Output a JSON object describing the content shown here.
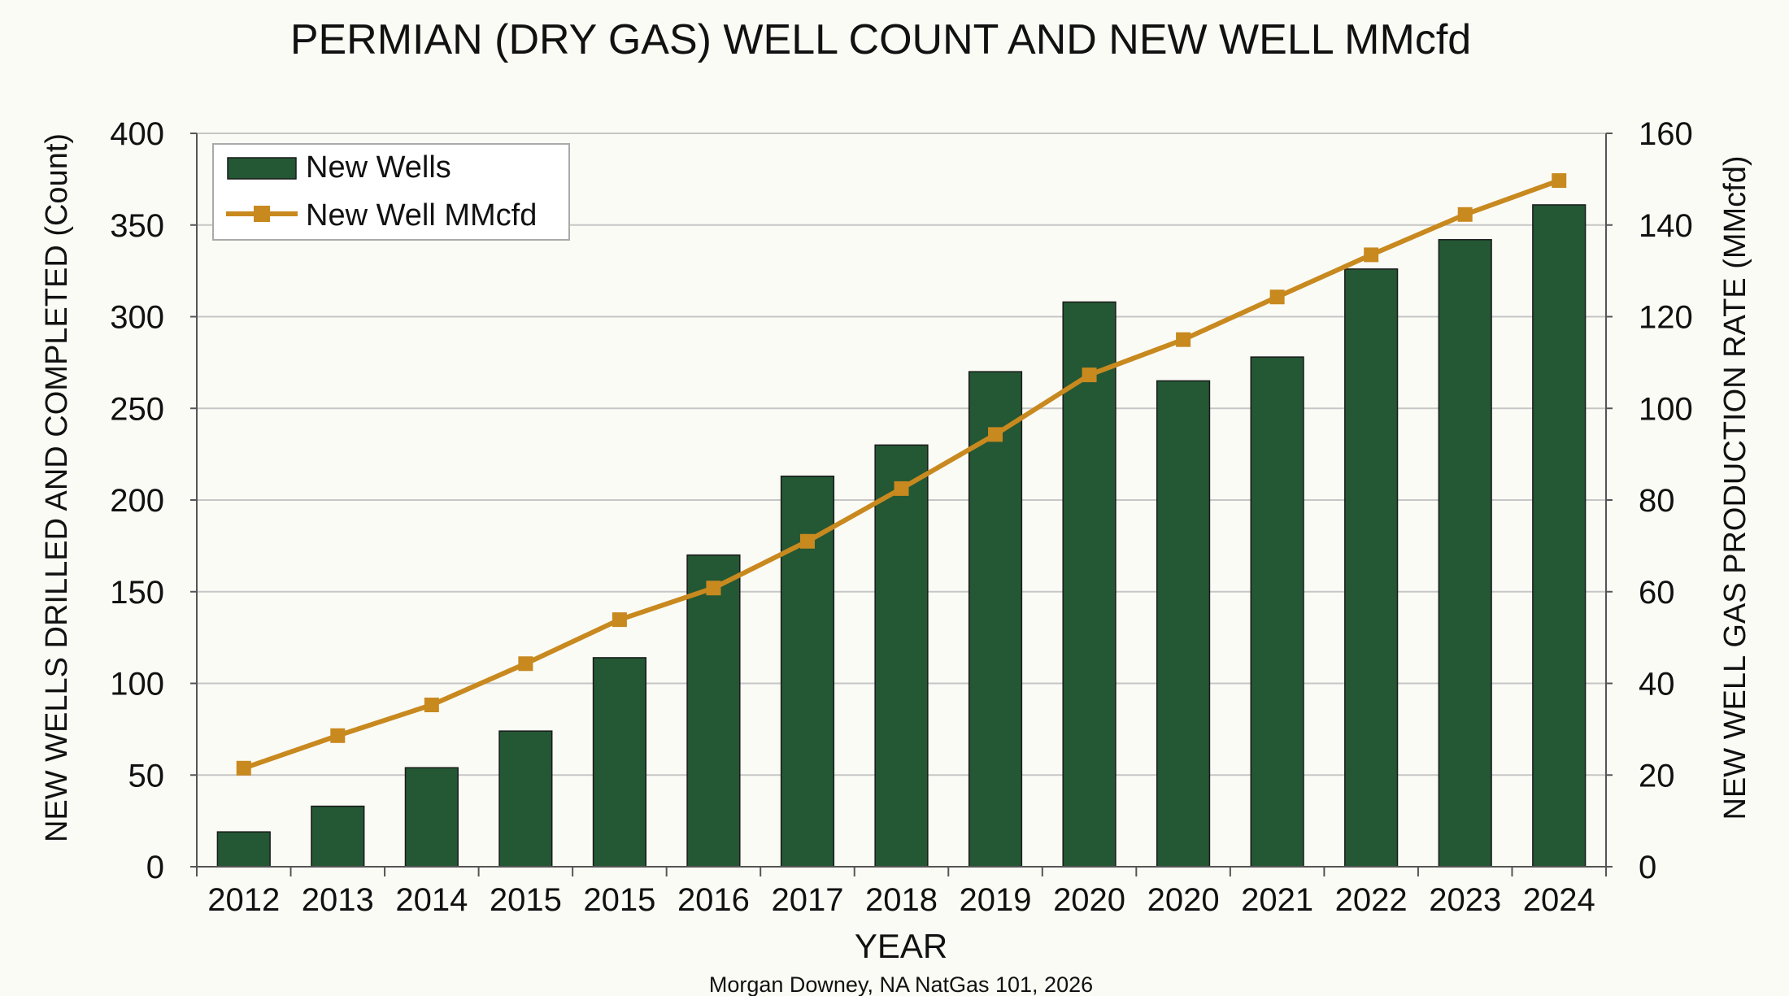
{
  "chart_data": {
    "type": "bar",
    "title": "PERMIAN (DRY GAS) WELL COUNT AND NEW WELL MMcfd",
    "xlabel": "YEAR",
    "ylabel": "NEW WELLS DRILLED AND COMPLETED (Count)",
    "y2label": "NEW WELL GAS PRODUCTION RATE (MMcfd)",
    "source": "Morgan Downey, NA NatGas 101, 2026",
    "categories": [
      "2012",
      "2013",
      "2014",
      "2015",
      "2015",
      "2016",
      "2017",
      "2018",
      "2019",
      "2020",
      "2020",
      "2021",
      "2022",
      "2023",
      "2024"
    ],
    "series": [
      {
        "name": "New Wells",
        "type": "bar",
        "axis": "left",
        "color": "#245734",
        "values": [
          19,
          33,
          54,
          74,
          114,
          170,
          213,
          230,
          270,
          308,
          265,
          278,
          326,
          342,
          361
        ]
      },
      {
        "name": "New Well MMcfd",
        "type": "line",
        "axis": "right",
        "color": "#c8891f",
        "values": [
          21.5,
          28.6,
          35.3,
          44.3,
          53.9,
          60.8,
          71.0,
          82.5,
          94.3,
          107.3,
          115.0,
          124.3,
          133.5,
          142.3,
          149.7
        ]
      }
    ],
    "ylim": [
      0,
      400
    ],
    "y2lim": [
      0,
      160
    ],
    "yticks": [
      "0",
      "50",
      "100",
      "150",
      "200",
      "250",
      "300",
      "350",
      "400"
    ],
    "y2ticks": [
      "0",
      "20",
      "40",
      "60",
      "80",
      "100",
      "120",
      "140",
      "160"
    ],
    "grid": true,
    "legend_position": "top-left"
  }
}
